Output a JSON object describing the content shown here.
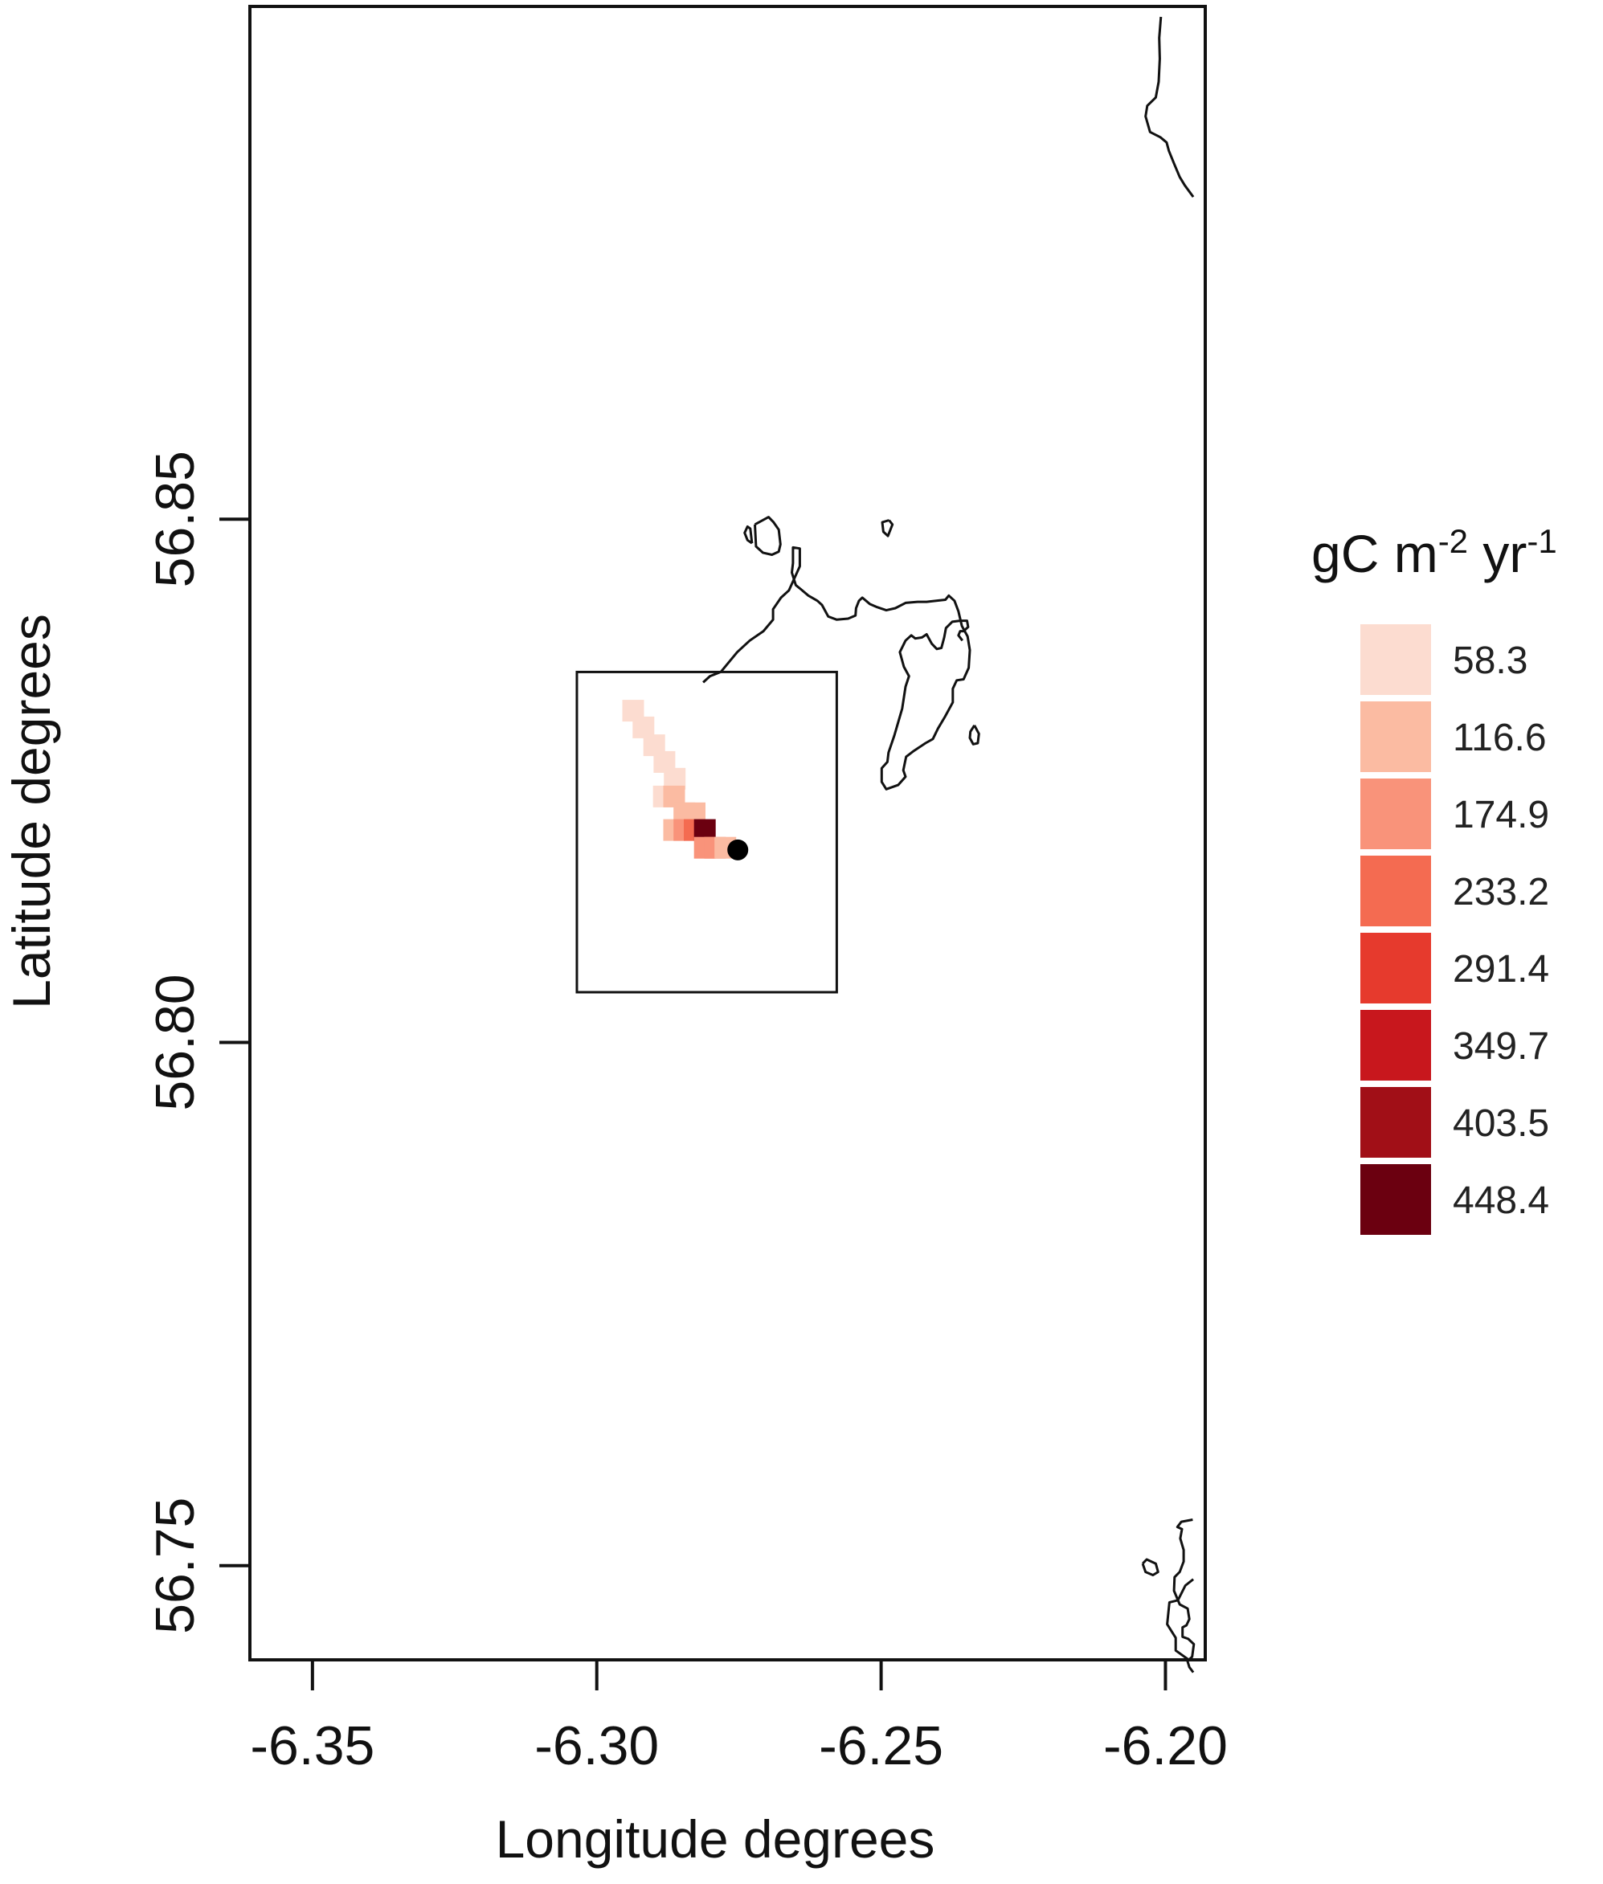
{
  "chart_data": {
    "type": "heatmap",
    "xlabel": "Longitude degrees",
    "ylabel": "Latitude degrees",
    "x_ticks": [
      -6.35,
      -6.3,
      -6.25,
      -6.2
    ],
    "x_tick_labels": [
      "-6.35",
      "-6.30",
      "-6.25",
      "-6.20"
    ],
    "y_ticks": [
      56.75,
      56.8,
      56.85
    ],
    "y_tick_labels": [
      "56.75",
      "56.80",
      "56.85"
    ],
    "xlim": [
      -6.361,
      -6.193
    ],
    "ylim": [
      56.741,
      56.899
    ],
    "legend_title": "gC m-2 yr-1",
    "legend_placement": "right",
    "legend": [
      {
        "label": "58.3",
        "color": "#fcdcd0"
      },
      {
        "label": "116.6",
        "color": "#fbbba2"
      },
      {
        "label": "174.9",
        "color": "#f9937a"
      },
      {
        "label": "233.2",
        "color": "#f46b51"
      },
      {
        "label": "291.4",
        "color": "#e63a2d"
      },
      {
        "label": "349.7",
        "color": "#c8171d"
      },
      {
        "label": "403.5",
        "color": "#a10f17"
      },
      {
        "label": "448.4",
        "color": "#6b0010"
      }
    ],
    "cells": [
      {
        "lon": -6.2936,
        "lat": 56.8317,
        "class": 0
      },
      {
        "lon": -6.2918,
        "lat": 56.8301,
        "class": 0
      },
      {
        "lon": -6.2899,
        "lat": 56.8284,
        "class": 0
      },
      {
        "lon": -6.2881,
        "lat": 56.8268,
        "class": 0
      },
      {
        "lon": -6.2863,
        "lat": 56.8252,
        "class": 0
      },
      {
        "lon": -6.2882,
        "lat": 56.8235,
        "class": 0
      },
      {
        "lon": -6.2864,
        "lat": 56.8235,
        "class": 1
      },
      {
        "lon": -6.2846,
        "lat": 56.8219,
        "class": 1
      },
      {
        "lon": -6.2828,
        "lat": 56.8219,
        "class": 1
      },
      {
        "lon": -6.2864,
        "lat": 56.8203,
        "class": 1
      },
      {
        "lon": -6.2846,
        "lat": 56.8203,
        "class": 2
      },
      {
        "lon": -6.2828,
        "lat": 56.8203,
        "class": 3
      },
      {
        "lon": -6.281,
        "lat": 56.8203,
        "class": 7
      },
      {
        "lon": -6.281,
        "lat": 56.8186,
        "class": 2
      },
      {
        "lon": -6.2792,
        "lat": 56.8186,
        "class": 2
      },
      {
        "lon": -6.2774,
        "lat": 56.8186,
        "class": 1
      }
    ],
    "study_box": {
      "lon_min": -6.3035,
      "lon_max": -6.2578,
      "lat_min": 56.8048,
      "lat_max": 56.8354
    },
    "site_point": {
      "lon": -6.2752,
      "lat": 56.8184
    },
    "coastlines": [
      [
        [
          -6.2782,
          56.8354
        ],
        [
          -6.2753,
          56.8373
        ],
        [
          -6.2731,
          56.8384
        ],
        [
          -6.2707,
          56.8393
        ],
        [
          -6.269,
          56.8404
        ],
        [
          -6.269,
          56.8414
        ],
        [
          -6.2676,
          56.8425
        ],
        [
          -6.2662,
          56.8432
        ],
        [
          -6.2643,
          56.8455
        ],
        [
          -6.2643,
          56.8472
        ],
        [
          -6.2655,
          56.8473
        ],
        [
          -6.2655,
          56.8458
        ],
        [
          -6.2657,
          56.8449
        ],
        [
          -6.265,
          56.8437
        ],
        [
          -6.2641,
          56.8433
        ],
        [
          -6.2628,
          56.8427
        ],
        [
          -6.2612,
          56.8422
        ],
        [
          -6.2604,
          56.8418
        ],
        [
          -6.2593,
          56.8407
        ],
        [
          -6.2578,
          56.8404
        ],
        [
          -6.2558,
          56.8405
        ],
        [
          -6.2545,
          56.8408
        ],
        [
          -6.2544,
          56.8415
        ],
        [
          -6.2539,
          56.8422
        ],
        [
          -6.2533,
          56.8425
        ],
        [
          -6.252,
          56.8419
        ],
        [
          -6.2507,
          56.8416
        ],
        [
          -6.2491,
          56.8413
        ],
        [
          -6.2475,
          56.8415
        ],
        [
          -6.2457,
          56.842
        ],
        [
          -6.2436,
          56.8421
        ],
        [
          -6.242,
          56.8421
        ],
        [
          -6.2403,
          56.8422
        ],
        [
          -6.2387,
          56.8423
        ],
        [
          -6.2381,
          56.8427
        ],
        [
          -6.2371,
          56.8422
        ],
        [
          -6.2364,
          56.8412
        ],
        [
          -6.2358,
          56.8398
        ],
        [
          -6.2348,
          56.8388
        ],
        [
          -6.2344,
          56.8375
        ],
        [
          -6.2346,
          56.8358
        ],
        [
          -6.2355,
          56.8347
        ],
        [
          -6.2367,
          56.8346
        ],
        [
          -6.2374,
          56.8338
        ],
        [
          -6.2374,
          56.8325
        ],
        [
          -6.2388,
          56.8311
        ],
        [
          -6.24,
          56.83
        ],
        [
          -6.2409,
          56.829
        ],
        [
          -6.2422,
          56.8286
        ],
        [
          -6.2444,
          56.8278
        ],
        [
          -6.2456,
          56.8273
        ],
        [
          -6.2461,
          56.826
        ],
        [
          -6.2457,
          56.8254
        ],
        [
          -6.247,
          56.8246
        ],
        [
          -6.2491,
          56.8242
        ],
        [
          -6.2499,
          56.8249
        ],
        [
          -6.2499,
          56.8262
        ],
        [
          -6.2489,
          56.8268
        ],
        [
          -6.2487,
          56.8277
        ],
        [
          -6.2477,
          56.8293
        ],
        [
          -6.2463,
          56.8319
        ],
        [
          -6.2457,
          56.834
        ],
        [
          -6.2451,
          56.835
        ],
        [
          -6.246,
          56.8359
        ],
        [
          -6.2467,
          56.8373
        ],
        [
          -6.2457,
          56.8384
        ],
        [
          -6.2447,
          56.8389
        ],
        [
          -6.244,
          56.8386
        ],
        [
          -6.2428,
          56.8387
        ],
        [
          -6.242,
          56.839
        ],
        [
          -6.2411,
          56.8381
        ],
        [
          -6.2402,
          56.8376
        ],
        [
          -6.2394,
          56.8377
        ],
        [
          -6.2389,
          56.8387
        ],
        [
          -6.2386,
          56.8396
        ],
        [
          -6.2375,
          56.8402
        ],
        [
          -6.2361,
          56.8403
        ],
        [
          -6.2349,
          56.8403
        ],
        [
          -6.2347,
          56.8397
        ],
        [
          -6.2355,
          56.8393
        ],
        [
          -6.2361,
          56.8393
        ],
        [
          -6.2364,
          56.8389
        ],
        [
          -6.2357,
          56.8384
        ]
      ],
      [
        [
          -6.2813,
          56.8344
        ],
        [
          -6.2801,
          56.835
        ],
        [
          -6.2782,
          56.8354
        ]
      ],
      [
        [
          -6.2722,
          56.8495
        ],
        [
          -6.2698,
          56.8502
        ],
        [
          -6.2689,
          56.8497
        ],
        [
          -6.268,
          56.849
        ],
        [
          -6.2677,
          56.8476
        ],
        [
          -6.268,
          56.8469
        ],
        [
          -6.2692,
          56.8466
        ],
        [
          -6.2708,
          56.8468
        ],
        [
          -6.272,
          56.8474
        ],
        [
          -6.2722,
          56.8495
        ]
      ],
      [
        [
          -6.2727,
          56.8477
        ],
        [
          -6.273,
          56.8491
        ],
        [
          -6.2735,
          56.8493
        ],
        [
          -6.274,
          56.8487
        ],
        [
          -6.2735,
          56.848
        ],
        [
          -6.2727,
          56.8477
        ]
      ],
      [
        [
          -6.2486,
          56.8499
        ],
        [
          -6.2498,
          56.8497
        ],
        [
          -6.2496,
          56.8488
        ],
        [
          -6.2488,
          56.8484
        ],
        [
          -6.248,
          56.8495
        ],
        [
          -6.2486,
          56.8499
        ]
      ],
      [
        [
          -6.2336,
          56.8303
        ],
        [
          -6.2343,
          56.8297
        ],
        [
          -6.2344,
          56.8291
        ],
        [
          -6.2338,
          56.8285
        ],
        [
          -6.233,
          56.8286
        ],
        [
          -6.2328,
          56.8295
        ],
        [
          -6.2336,
          56.8303
        ]
      ],
      [
        [
          -6.2008,
          56.898
        ],
        [
          -6.2011,
          56.896
        ],
        [
          -6.201,
          56.894
        ],
        [
          -6.2012,
          56.8918
        ],
        [
          -6.2017,
          56.8903
        ],
        [
          -6.2032,
          56.8895
        ],
        [
          -6.2035,
          56.8885
        ],
        [
          -6.2027,
          56.887
        ],
        [
          -6.2009,
          56.8865
        ],
        [
          -6.1998,
          56.886
        ],
        [
          -6.1994,
          56.8852
        ],
        [
          -6.1985,
          56.884
        ],
        [
          -6.1975,
          56.8827
        ],
        [
          -6.1966,
          56.8819
        ],
        [
          -6.1951,
          56.8808
        ]
      ],
      [
        [
          -6.1951,
          56.7487
        ],
        [
          -6.1965,
          56.7481
        ],
        [
          -6.1978,
          56.7467
        ],
        [
          -6.1993,
          56.7465
        ],
        [
          -6.1997,
          56.7444
        ],
        [
          -6.1982,
          56.7431
        ],
        [
          -6.1982,
          56.7419
        ],
        [
          -6.1959,
          56.741
        ],
        [
          -6.1953,
          56.7413
        ],
        [
          -6.195,
          56.7425
        ],
        [
          -6.196,
          56.743
        ],
        [
          -6.197,
          56.7432
        ],
        [
          -6.197,
          56.7441
        ],
        [
          -6.1963,
          56.7443
        ],
        [
          -6.1958,
          56.7449
        ],
        [
          -6.1961,
          56.7459
        ],
        [
          -6.1975,
          56.7463
        ],
        [
          -6.1985,
          56.7476
        ],
        [
          -6.1984,
          56.7489
        ],
        [
          -6.1975,
          56.7494
        ],
        [
          -6.1968,
          56.7504
        ],
        [
          -6.1968,
          56.7515
        ],
        [
          -6.1974,
          56.7526
        ],
        [
          -6.1971,
          56.7535
        ],
        [
          -6.1979,
          56.7537
        ],
        [
          -6.1972,
          56.7542
        ],
        [
          -6.1952,
          56.7544
        ]
      ],
      [
        [
          -6.1951,
          56.7398
        ],
        [
          -6.1958,
          56.7403
        ],
        [
          -6.1963,
          56.7412
        ]
      ],
      [
        [
          -6.204,
          56.7502
        ],
        [
          -6.2035,
          56.7494
        ],
        [
          -6.2022,
          56.7491
        ],
        [
          -6.2013,
          56.7494
        ],
        [
          -6.2017,
          56.7502
        ],
        [
          -6.2033,
          56.7506
        ],
        [
          -6.204,
          56.7502
        ]
      ]
    ]
  }
}
